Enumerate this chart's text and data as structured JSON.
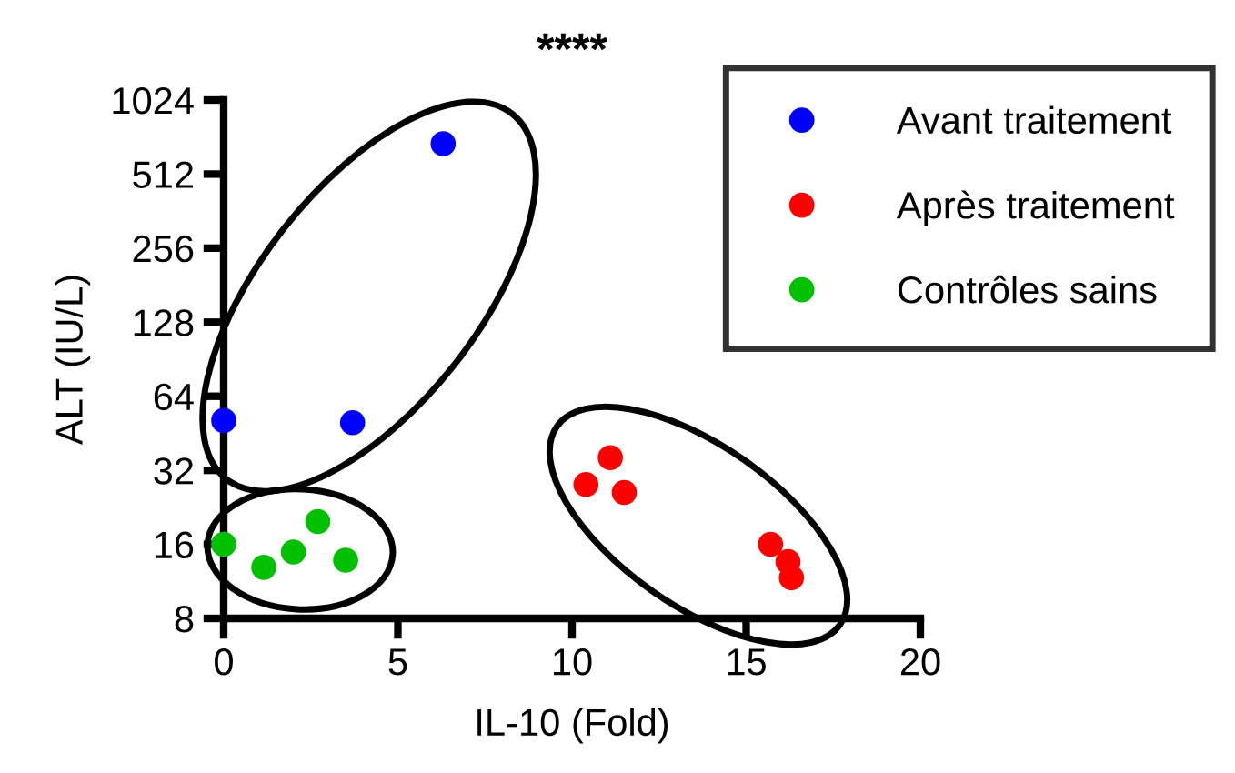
{
  "chart_data": {
    "type": "scatter",
    "title": "****",
    "xlabel": "IL-10 (Fold)",
    "ylabel": "ALT (IU/L)",
    "log": "y",
    "marker": "circle",
    "legend": "top right",
    "grid": false,
    "xlim": [
      0,
      20
    ],
    "xticks": [
      0,
      5,
      10,
      15,
      20
    ],
    "ylim": [
      8,
      1024
    ],
    "yticks": [
      8,
      16,
      32,
      64,
      128,
      256,
      512,
      1024
    ],
    "series": [
      {
        "name": "Avant traitement",
        "color": "#0000ff",
        "x": [
          0,
          3.7,
          6.3
        ],
        "values": [
          51,
          50,
          680
        ]
      },
      {
        "name": "Après traitement",
        "color": "#ff0000",
        "x": [
          10.4,
          11.1,
          11.5,
          15.7,
          16.2,
          16.3
        ],
        "values": [
          28,
          36,
          26,
          16,
          13.6,
          11.7
        ]
      },
      {
        "name": "Contrôles sains",
        "color": "#00c000",
        "x": [
          0,
          1.15,
          2.0,
          2.7,
          3.5
        ],
        "values": [
          16,
          12.9,
          14.9,
          19.8,
          13.8
        ]
      }
    ]
  }
}
